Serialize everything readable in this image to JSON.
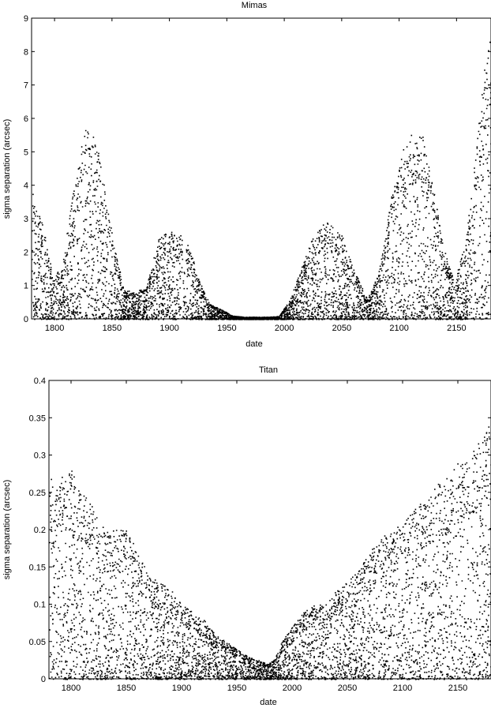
{
  "chart_data": [
    {
      "type": "scatter",
      "title": "Mimas",
      "xlabel": "date",
      "ylabel": "sigma separation (arcsec)",
      "xlim": [
        1780,
        2180
      ],
      "ylim": [
        0,
        9
      ],
      "xticks": [
        1800,
        1850,
        1900,
        1950,
        2000,
        2050,
        2100,
        2150
      ],
      "yticks": [
        0,
        1,
        2,
        3,
        4,
        5,
        6,
        7,
        8,
        9
      ],
      "grid": false,
      "series": [
        {
          "color": "#000000",
          "envelope_x": [
            1780,
            1782,
            1790,
            1797,
            1805,
            1815,
            1825,
            1830,
            1838,
            1850,
            1860,
            1870,
            1880,
            1890,
            1900,
            1910,
            1918,
            1925,
            1935,
            1945,
            1955,
            1965,
            1975,
            1985,
            1995,
            2005,
            2015,
            2025,
            2035,
            2042,
            2050,
            2060,
            2072,
            2082,
            2092,
            2102,
            2112,
            2120,
            2128,
            2138,
            2148,
            2158,
            2168,
            2175,
            2180
          ],
          "envelope_y": [
            4.3,
            3.5,
            2.8,
            1.5,
            1.4,
            3.6,
            5.6,
            5.8,
            5.0,
            2.5,
            0.9,
            0.8,
            1.0,
            2.4,
            2.65,
            2.5,
            2.1,
            1.2,
            0.45,
            0.3,
            0.1,
            0.07,
            0.07,
            0.07,
            0.09,
            0.6,
            1.6,
            2.5,
            2.95,
            2.8,
            2.5,
            1.5,
            0.6,
            1.4,
            3.5,
            5.0,
            5.7,
            5.5,
            4.3,
            2.2,
            1.1,
            2.4,
            5.5,
            8.0,
            8.5
          ]
        }
      ]
    },
    {
      "type": "scatter",
      "title": "Titan",
      "xlabel": "date",
      "ylabel": "sigma separation (arcsec)",
      "xlim": [
        1780,
        2180
      ],
      "ylim": [
        0,
        0.4
      ],
      "xticks": [
        1800,
        1850,
        1900,
        1950,
        2000,
        2050,
        2100,
        2150
      ],
      "yticks": [
        0,
        0.05,
        0.1,
        0.15,
        0.2,
        0.25,
        0.3,
        0.35,
        0.4
      ],
      "grid": false,
      "series": [
        {
          "color": "#000000",
          "envelope_x": [
            1780,
            1790,
            1800,
            1810,
            1820,
            1830,
            1840,
            1850,
            1860,
            1870,
            1880,
            1890,
            1900,
            1910,
            1920,
            1930,
            1940,
            1950,
            1960,
            1970,
            1978,
            1985,
            1990,
            2000,
            2010,
            2020,
            2030,
            2040,
            2050,
            2060,
            2070,
            2080,
            2090,
            2100,
            2110,
            2120,
            2130,
            2140,
            2150,
            2160,
            2170,
            2180
          ],
          "envelope_y": [
            0.27,
            0.27,
            0.28,
            0.25,
            0.23,
            0.2,
            0.2,
            0.2,
            0.17,
            0.14,
            0.13,
            0.12,
            0.1,
            0.09,
            0.08,
            0.06,
            0.05,
            0.04,
            0.03,
            0.025,
            0.02,
            0.03,
            0.05,
            0.07,
            0.09,
            0.1,
            0.1,
            0.12,
            0.13,
            0.15,
            0.17,
            0.19,
            0.2,
            0.21,
            0.23,
            0.24,
            0.26,
            0.27,
            0.29,
            0.3,
            0.32,
            0.36
          ]
        }
      ]
    }
  ]
}
